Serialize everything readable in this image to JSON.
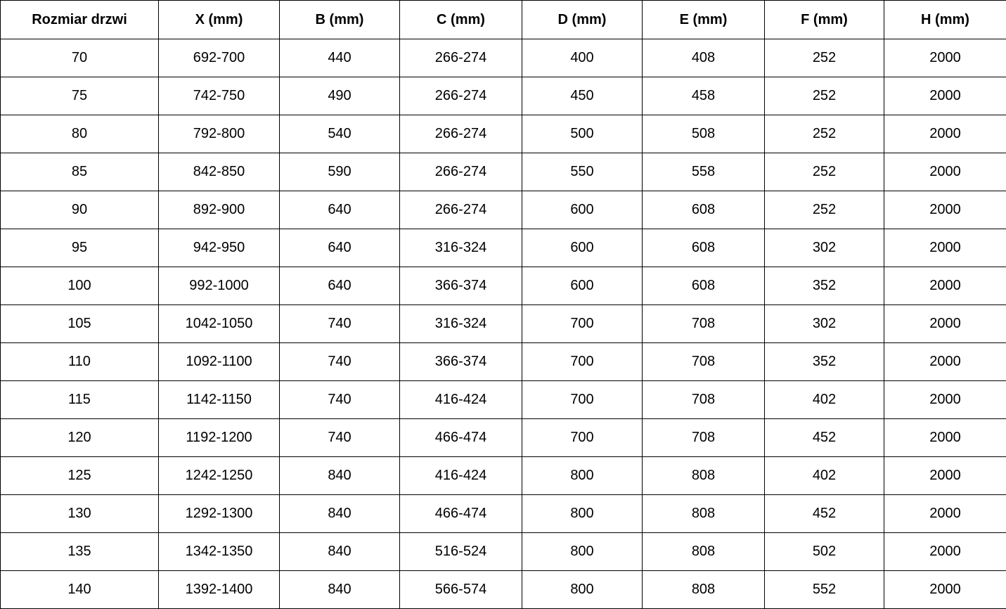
{
  "colors": {
    "background": "#ffffff",
    "border": "#000000",
    "text": "#000000"
  },
  "table": {
    "name": "door-dimensions-table",
    "columns": [
      "Rozmiar drzwi",
      "X (mm)",
      "B (mm)",
      "C (mm)",
      "D (mm)",
      "E (mm)",
      "F (mm)",
      "H (mm)"
    ],
    "rows": [
      [
        "70",
        "692-700",
        "440",
        "266-274",
        "400",
        "408",
        "252",
        "2000"
      ],
      [
        "75",
        "742-750",
        "490",
        "266-274",
        "450",
        "458",
        "252",
        "2000"
      ],
      [
        "80",
        "792-800",
        "540",
        "266-274",
        "500",
        "508",
        "252",
        "2000"
      ],
      [
        "85",
        "842-850",
        "590",
        "266-274",
        "550",
        "558",
        "252",
        "2000"
      ],
      [
        "90",
        "892-900",
        "640",
        "266-274",
        "600",
        "608",
        "252",
        "2000"
      ],
      [
        "95",
        "942-950",
        "640",
        "316-324",
        "600",
        "608",
        "302",
        "2000"
      ],
      [
        "100",
        "992-1000",
        "640",
        "366-374",
        "600",
        "608",
        "352",
        "2000"
      ],
      [
        "105",
        "1042-1050",
        "740",
        "316-324",
        "700",
        "708",
        "302",
        "2000"
      ],
      [
        "110",
        "1092-1100",
        "740",
        "366-374",
        "700",
        "708",
        "352",
        "2000"
      ],
      [
        "115",
        "1142-1150",
        "740",
        "416-424",
        "700",
        "708",
        "402",
        "2000"
      ],
      [
        "120",
        "1192-1200",
        "740",
        "466-474",
        "700",
        "708",
        "452",
        "2000"
      ],
      [
        "125",
        "1242-1250",
        "840",
        "416-424",
        "800",
        "808",
        "402",
        "2000"
      ],
      [
        "130",
        "1292-1300",
        "840",
        "466-474",
        "800",
        "808",
        "452",
        "2000"
      ],
      [
        "135",
        "1342-1350",
        "840",
        "516-524",
        "800",
        "808",
        "502",
        "2000"
      ],
      [
        "140",
        "1392-1400",
        "840",
        "566-574",
        "800",
        "808",
        "552",
        "2000"
      ]
    ]
  },
  "chart_data": {
    "type": "table",
    "title": "",
    "columns": [
      "Rozmiar drzwi",
      "X (mm)",
      "B (mm)",
      "C (mm)",
      "D (mm)",
      "E (mm)",
      "F (mm)",
      "H (mm)"
    ],
    "rows": [
      [
        "70",
        "692-700",
        "440",
        "266-274",
        "400",
        "408",
        "252",
        "2000"
      ],
      [
        "75",
        "742-750",
        "490",
        "266-274",
        "450",
        "458",
        "252",
        "2000"
      ],
      [
        "80",
        "792-800",
        "540",
        "266-274",
        "500",
        "508",
        "252",
        "2000"
      ],
      [
        "85",
        "842-850",
        "590",
        "266-274",
        "550",
        "558",
        "252",
        "2000"
      ],
      [
        "90",
        "892-900",
        "640",
        "266-274",
        "600",
        "608",
        "252",
        "2000"
      ],
      [
        "95",
        "942-950",
        "640",
        "316-324",
        "600",
        "608",
        "302",
        "2000"
      ],
      [
        "100",
        "992-1000",
        "640",
        "366-374",
        "600",
        "608",
        "352",
        "2000"
      ],
      [
        "105",
        "1042-1050",
        "740",
        "316-324",
        "700",
        "708",
        "302",
        "2000"
      ],
      [
        "110",
        "1092-1100",
        "740",
        "366-374",
        "700",
        "708",
        "352",
        "2000"
      ],
      [
        "115",
        "1142-1150",
        "740",
        "416-424",
        "700",
        "708",
        "402",
        "2000"
      ],
      [
        "120",
        "1192-1200",
        "740",
        "466-474",
        "700",
        "708",
        "452",
        "2000"
      ],
      [
        "125",
        "1242-1250",
        "840",
        "416-424",
        "800",
        "808",
        "402",
        "2000"
      ],
      [
        "130",
        "1292-1300",
        "840",
        "466-474",
        "800",
        "808",
        "452",
        "2000"
      ],
      [
        "135",
        "1342-1350",
        "840",
        "516-524",
        "800",
        "808",
        "502",
        "2000"
      ],
      [
        "140",
        "1392-1400",
        "840",
        "566-574",
        "800",
        "808",
        "552",
        "2000"
      ]
    ]
  }
}
